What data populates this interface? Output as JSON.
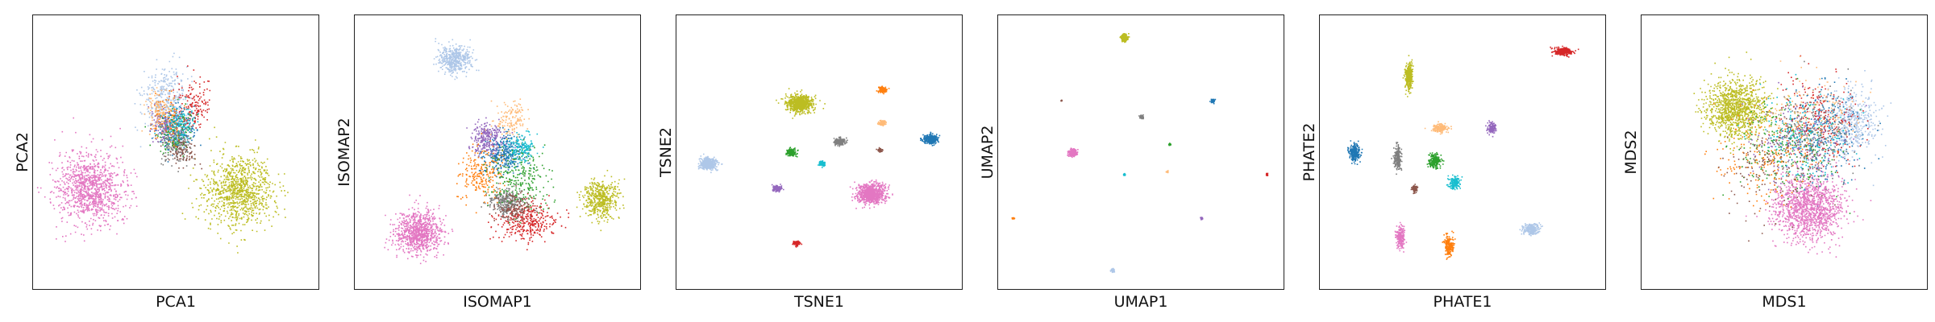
{
  "colors": {
    "c0": "#1f77b4",
    "c1": "#aec7e8",
    "c2": "#ff7f0e",
    "c3": "#ffbb78",
    "c4": "#2ca02c",
    "c5": "#d62728",
    "c6": "#9467bd",
    "c7": "#8c564b",
    "c8": "#e377c2",
    "c9": "#7f7f7f",
    "c10": "#bcbd22",
    "c11": "#17becf"
  },
  "chart_data": [
    {
      "type": "scatter",
      "title": "",
      "xlabel": "PCA1",
      "ylabel": "PCA2",
      "xlim": [
        0,
        1
      ],
      "ylim": [
        0,
        1
      ],
      "grid": false,
      "ticks": false,
      "clusters": [
        {
          "color": "c8",
          "x": 0.2,
          "y": 0.37,
          "sx": 0.12,
          "sy": 0.13,
          "n": 1100
        },
        {
          "color": "c10",
          "x": 0.72,
          "y": 0.36,
          "sx": 0.12,
          "sy": 0.13,
          "n": 1000
        },
        {
          "color": "c1",
          "x": 0.46,
          "y": 0.7,
          "sx": 0.08,
          "sy": 0.12,
          "n": 350
        },
        {
          "color": "c0",
          "x": 0.5,
          "y": 0.58,
          "sx": 0.06,
          "sy": 0.08,
          "n": 240
        },
        {
          "color": "c5",
          "x": 0.56,
          "y": 0.67,
          "sx": 0.06,
          "sy": 0.1,
          "n": 160
        },
        {
          "color": "c9",
          "x": 0.5,
          "y": 0.52,
          "sx": 0.05,
          "sy": 0.06,
          "n": 160
        },
        {
          "color": "c4",
          "x": 0.49,
          "y": 0.58,
          "sx": 0.06,
          "sy": 0.08,
          "n": 140
        },
        {
          "color": "c2",
          "x": 0.47,
          "y": 0.62,
          "sx": 0.05,
          "sy": 0.08,
          "n": 120
        },
        {
          "color": "c6",
          "x": 0.46,
          "y": 0.6,
          "sx": 0.05,
          "sy": 0.06,
          "n": 110
        },
        {
          "color": "c11",
          "x": 0.52,
          "y": 0.6,
          "sx": 0.05,
          "sy": 0.06,
          "n": 110
        },
        {
          "color": "c7",
          "x": 0.52,
          "y": 0.5,
          "sx": 0.05,
          "sy": 0.05,
          "n": 90
        },
        {
          "color": "c3",
          "x": 0.44,
          "y": 0.66,
          "sx": 0.05,
          "sy": 0.07,
          "n": 90
        }
      ]
    },
    {
      "type": "scatter",
      "title": "",
      "xlabel": "ISOMAP1",
      "ylabel": "ISOMAP2",
      "xlim": [
        0,
        1
      ],
      "ylim": [
        0,
        1
      ],
      "grid": false,
      "ticks": false,
      "clusters": [
        {
          "color": "c1",
          "x": 0.35,
          "y": 0.84,
          "sx": 0.06,
          "sy": 0.05,
          "n": 450
        },
        {
          "color": "c8",
          "x": 0.22,
          "y": 0.21,
          "sx": 0.08,
          "sy": 0.08,
          "n": 900
        },
        {
          "color": "c10",
          "x": 0.86,
          "y": 0.33,
          "sx": 0.06,
          "sy": 0.07,
          "n": 500
        },
        {
          "color": "c5",
          "x": 0.6,
          "y": 0.25,
          "sx": 0.1,
          "sy": 0.07,
          "n": 350
        },
        {
          "color": "c9",
          "x": 0.53,
          "y": 0.32,
          "sx": 0.06,
          "sy": 0.05,
          "n": 300
        },
        {
          "color": "c0",
          "x": 0.52,
          "y": 0.5,
          "sx": 0.07,
          "sy": 0.08,
          "n": 350
        },
        {
          "color": "c6",
          "x": 0.46,
          "y": 0.55,
          "sx": 0.06,
          "sy": 0.06,
          "n": 250
        },
        {
          "color": "c2",
          "x": 0.44,
          "y": 0.42,
          "sx": 0.08,
          "sy": 0.1,
          "n": 220
        },
        {
          "color": "c4",
          "x": 0.58,
          "y": 0.4,
          "sx": 0.11,
          "sy": 0.11,
          "n": 250
        },
        {
          "color": "c3",
          "x": 0.55,
          "y": 0.62,
          "sx": 0.06,
          "sy": 0.07,
          "n": 140
        },
        {
          "color": "c11",
          "x": 0.58,
          "y": 0.52,
          "sx": 0.05,
          "sy": 0.05,
          "n": 140
        },
        {
          "color": "c7",
          "x": 0.56,
          "y": 0.3,
          "sx": 0.07,
          "sy": 0.05,
          "n": 120
        }
      ]
    },
    {
      "type": "scatter",
      "title": "",
      "xlabel": "TSNE1",
      "ylabel": "TSNE2",
      "xlim": [
        0,
        1
      ],
      "ylim": [
        0,
        1
      ],
      "grid": false,
      "ticks": false,
      "clusters": [
        {
          "color": "c1",
          "x": 0.11,
          "y": 0.46,
          "sx": 0.028,
          "sy": 0.02,
          "n": 500
        },
        {
          "color": "c10",
          "x": 0.43,
          "y": 0.68,
          "sx": 0.045,
          "sy": 0.03,
          "n": 800
        },
        {
          "color": "c8",
          "x": 0.68,
          "y": 0.35,
          "sx": 0.048,
          "sy": 0.036,
          "n": 900
        },
        {
          "color": "c0",
          "x": 0.89,
          "y": 0.55,
          "sx": 0.024,
          "sy": 0.016,
          "n": 350
        },
        {
          "color": "c2",
          "x": 0.72,
          "y": 0.73,
          "sx": 0.014,
          "sy": 0.01,
          "n": 150
        },
        {
          "color": "c3",
          "x": 0.72,
          "y": 0.61,
          "sx": 0.013,
          "sy": 0.008,
          "n": 120
        },
        {
          "color": "c9",
          "x": 0.57,
          "y": 0.54,
          "sx": 0.018,
          "sy": 0.012,
          "n": 220
        },
        {
          "color": "c7",
          "x": 0.71,
          "y": 0.51,
          "sx": 0.008,
          "sy": 0.006,
          "n": 60
        },
        {
          "color": "c4",
          "x": 0.4,
          "y": 0.5,
          "sx": 0.016,
          "sy": 0.012,
          "n": 180
        },
        {
          "color": "c11",
          "x": 0.51,
          "y": 0.46,
          "sx": 0.011,
          "sy": 0.008,
          "n": 90
        },
        {
          "color": "c6",
          "x": 0.35,
          "y": 0.37,
          "sx": 0.016,
          "sy": 0.011,
          "n": 150
        },
        {
          "color": "c5",
          "x": 0.42,
          "y": 0.17,
          "sx": 0.011,
          "sy": 0.009,
          "n": 100
        }
      ]
    },
    {
      "type": "scatter",
      "title": "",
      "xlabel": "UMAP1",
      "ylabel": "UMAP2",
      "xlim": [
        0,
        1
      ],
      "ylim": [
        0,
        1
      ],
      "grid": false,
      "ticks": false,
      "clusters": [
        {
          "color": "c10",
          "x": 0.44,
          "y": 0.92,
          "sx": 0.01,
          "sy": 0.012,
          "n": 300
        },
        {
          "color": "c8",
          "x": 0.26,
          "y": 0.5,
          "sx": 0.012,
          "sy": 0.012,
          "n": 400
        },
        {
          "color": "c0",
          "x": 0.75,
          "y": 0.69,
          "sx": 0.006,
          "sy": 0.007,
          "n": 80
        },
        {
          "color": "c9",
          "x": 0.5,
          "y": 0.63,
          "sx": 0.006,
          "sy": 0.006,
          "n": 60
        },
        {
          "color": "c4",
          "x": 0.6,
          "y": 0.53,
          "sx": 0.004,
          "sy": 0.004,
          "n": 30
        },
        {
          "color": "c3",
          "x": 0.59,
          "y": 0.43,
          "sx": 0.003,
          "sy": 0.004,
          "n": 25
        },
        {
          "color": "c11",
          "x": 0.44,
          "y": 0.42,
          "sx": 0.003,
          "sy": 0.003,
          "n": 25
        },
        {
          "color": "c5",
          "x": 0.94,
          "y": 0.42,
          "sx": 0.003,
          "sy": 0.004,
          "n": 25
        },
        {
          "color": "c6",
          "x": 0.71,
          "y": 0.26,
          "sx": 0.004,
          "sy": 0.004,
          "n": 30
        },
        {
          "color": "c2",
          "x": 0.05,
          "y": 0.26,
          "sx": 0.004,
          "sy": 0.003,
          "n": 25
        },
        {
          "color": "c1",
          "x": 0.4,
          "y": 0.07,
          "sx": 0.006,
          "sy": 0.006,
          "n": 70
        },
        {
          "color": "c7",
          "x": 0.22,
          "y": 0.69,
          "sx": 0.002,
          "sy": 0.002,
          "n": 10
        }
      ]
    },
    {
      "type": "scatter",
      "title": "",
      "xlabel": "PHATE1",
      "ylabel": "PHATE2",
      "xlim": [
        0,
        1
      ],
      "ylim": [
        0,
        1
      ],
      "grid": false,
      "ticks": false,
      "clusters": [
        {
          "color": "c5",
          "x": 0.85,
          "y": 0.87,
          "sx": 0.03,
          "sy": 0.012,
          "n": 300
        },
        {
          "color": "c10",
          "x": 0.31,
          "y": 0.78,
          "sx": 0.012,
          "sy": 0.045,
          "n": 300
        },
        {
          "color": "c0",
          "x": 0.12,
          "y": 0.5,
          "sx": 0.018,
          "sy": 0.03,
          "n": 280
        },
        {
          "color": "c9",
          "x": 0.27,
          "y": 0.48,
          "sx": 0.012,
          "sy": 0.04,
          "n": 200
        },
        {
          "color": "c3",
          "x": 0.42,
          "y": 0.59,
          "sx": 0.025,
          "sy": 0.015,
          "n": 180
        },
        {
          "color": "c6",
          "x": 0.6,
          "y": 0.59,
          "sx": 0.015,
          "sy": 0.02,
          "n": 130
        },
        {
          "color": "c4",
          "x": 0.4,
          "y": 0.47,
          "sx": 0.02,
          "sy": 0.025,
          "n": 220
        },
        {
          "color": "c11",
          "x": 0.47,
          "y": 0.39,
          "sx": 0.018,
          "sy": 0.022,
          "n": 150
        },
        {
          "color": "c7",
          "x": 0.33,
          "y": 0.37,
          "sx": 0.01,
          "sy": 0.015,
          "n": 90
        },
        {
          "color": "c8",
          "x": 0.28,
          "y": 0.19,
          "sx": 0.014,
          "sy": 0.04,
          "n": 220
        },
        {
          "color": "c2",
          "x": 0.45,
          "y": 0.16,
          "sx": 0.014,
          "sy": 0.04,
          "n": 220
        },
        {
          "color": "c1",
          "x": 0.74,
          "y": 0.22,
          "sx": 0.03,
          "sy": 0.02,
          "n": 260
        }
      ]
    },
    {
      "type": "scatter",
      "title": "",
      "xlabel": "MDS1",
      "ylabel": "MDS2",
      "xlim": [
        0,
        1
      ],
      "ylim": [
        0,
        1
      ],
      "grid": false,
      "ticks": false,
      "clusters": [
        {
          "color": "c10",
          "x": 0.33,
          "y": 0.66,
          "sx": 0.1,
          "sy": 0.11,
          "n": 1100
        },
        {
          "color": "c8",
          "x": 0.58,
          "y": 0.3,
          "sx": 0.12,
          "sy": 0.12,
          "n": 1300
        },
        {
          "color": "c1",
          "x": 0.74,
          "y": 0.61,
          "sx": 0.09,
          "sy": 0.12,
          "n": 420
        },
        {
          "color": "c0",
          "x": 0.64,
          "y": 0.58,
          "sx": 0.14,
          "sy": 0.16,
          "n": 260
        },
        {
          "color": "c5",
          "x": 0.62,
          "y": 0.62,
          "sx": 0.14,
          "sy": 0.16,
          "n": 240
        },
        {
          "color": "c4",
          "x": 0.5,
          "y": 0.52,
          "sx": 0.18,
          "sy": 0.17,
          "n": 240
        },
        {
          "color": "c9",
          "x": 0.6,
          "y": 0.58,
          "sx": 0.15,
          "sy": 0.16,
          "n": 220
        },
        {
          "color": "c2",
          "x": 0.42,
          "y": 0.48,
          "sx": 0.18,
          "sy": 0.18,
          "n": 200
        },
        {
          "color": "c6",
          "x": 0.55,
          "y": 0.55,
          "sx": 0.17,
          "sy": 0.16,
          "n": 170
        },
        {
          "color": "c11",
          "x": 0.58,
          "y": 0.56,
          "sx": 0.16,
          "sy": 0.16,
          "n": 170
        },
        {
          "color": "c7",
          "x": 0.45,
          "y": 0.45,
          "sx": 0.18,
          "sy": 0.18,
          "n": 150
        },
        {
          "color": "c3",
          "x": 0.6,
          "y": 0.64,
          "sx": 0.15,
          "sy": 0.15,
          "n": 140
        }
      ]
    }
  ]
}
